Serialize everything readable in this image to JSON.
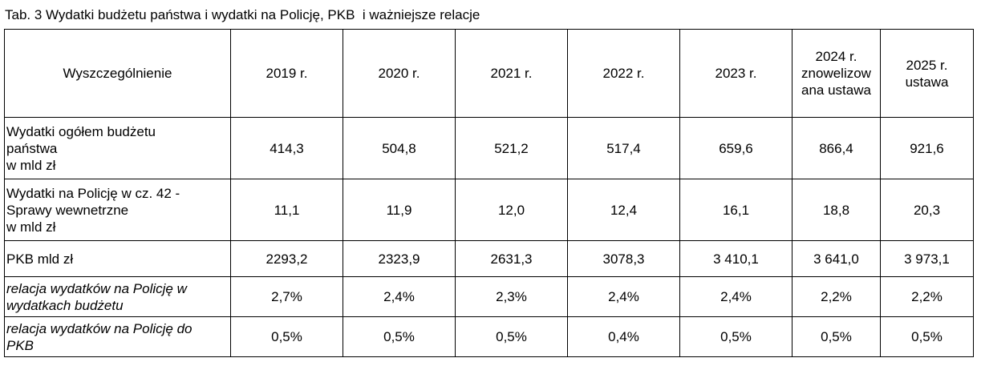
{
  "caption": "Tab. 3 Wydatki budżetu państwa i wydatki na Policję, PKB  i ważniejsze relacje",
  "table": {
    "header": [
      "Wyszczególnienie",
      "2019 r.",
      "2020 r.",
      "2021 r.",
      "2022 r.",
      "2023 r.",
      "2024 r.\nznowelizow\nana ustawa",
      "2025 r.\nustawa"
    ],
    "rows": [
      [
        "Wydatki ogółem budżetu\npaństwa\nw mld zł",
        "414,3",
        "504,8",
        "521,2",
        "517,4",
        "659,6",
        "866,4",
        "921,6"
      ],
      [
        "Wydatki na Policję w cz. 42 -\nSprawy wewnetrzne\nw mld zł",
        "11,1",
        "11,9",
        "12,0",
        "12,4",
        "16,1",
        "18,8",
        "20,3"
      ],
      [
        "PKB mld zł",
        "2293,2",
        "2323,9",
        "2631,3",
        "3078,3",
        "3 410,1",
        "3 641,0",
        "3 973,1"
      ],
      [
        "relacja wydatków na Policję w\nwydatkach budżetu",
        "2,7%",
        "2,4%",
        "2,3%",
        "2,4%",
        "2,4%",
        "2,2%",
        "2,2%"
      ],
      [
        "relacja wydatków na Policję do\nPKB",
        "0,5%",
        "0,5%",
        "0,5%",
        "0,4%",
        "0,5%",
        "0,5%",
        "0,5%"
      ]
    ]
  }
}
